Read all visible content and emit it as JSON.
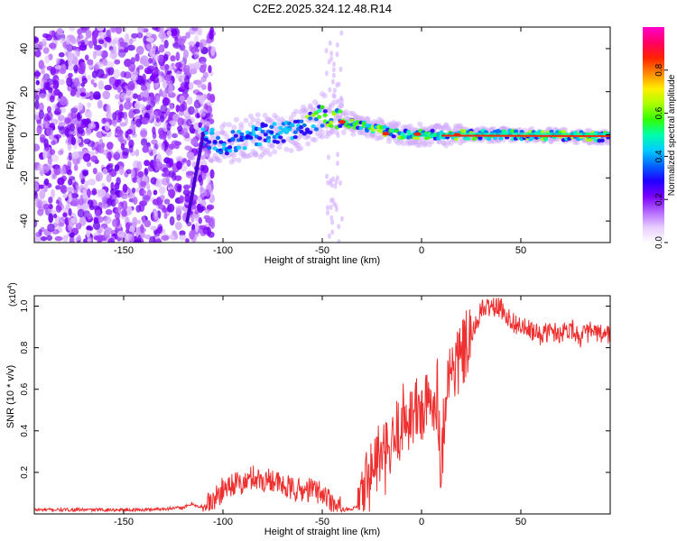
{
  "title": "C2E2.2025.324.12.48.R14",
  "chart_data": [
    {
      "type": "heatmap",
      "name": "spectrogram",
      "xlabel": "Height of straight line (km)",
      "ylabel": "Frequency (Hz)",
      "xlim": [
        -195,
        95
      ],
      "ylim": [
        -50,
        50
      ],
      "xticks": [
        -150,
        -100,
        -50,
        0,
        50
      ],
      "yticks": [
        -40,
        -20,
        0,
        20,
        40
      ],
      "colorbar": {
        "label": "Normalized spectral amplitude",
        "range": [
          0.0,
          1.0
        ],
        "ticks": [
          0.0,
          0.2,
          0.4,
          0.6,
          0.8
        ],
        "colors": [
          "#ffffff",
          "#e6ccff",
          "#b366ff",
          "#7a00ff",
          "#2000ff",
          "#0066ff",
          "#00ccff",
          "#00ffaa",
          "#33ff00",
          "#aaff00",
          "#ffee00",
          "#ff8800",
          "#ff2200",
          "#ff0066",
          "#ff00cc"
        ]
      },
      "ridge": [
        {
          "x": -110,
          "y": 0
        },
        {
          "x": -100,
          "y": -4
        },
        {
          "x": -90,
          "y": -2
        },
        {
          "x": -80,
          "y": 0
        },
        {
          "x": -70,
          "y": 2
        },
        {
          "x": -60,
          "y": 3
        },
        {
          "x": -50,
          "y": 9
        },
        {
          "x": -40,
          "y": 6
        },
        {
          "x": -30,
          "y": 4
        },
        {
          "x": -20,
          "y": 2
        },
        {
          "x": -10,
          "y": 0
        },
        {
          "x": 0,
          "y": 0
        },
        {
          "x": 20,
          "y": 0
        },
        {
          "x": 50,
          "y": 0
        },
        {
          "x": 95,
          "y": -1
        }
      ]
    },
    {
      "type": "line",
      "name": "snr",
      "xlabel": "Height of straight line (km)",
      "ylabel": "SNR (10 * v/v)",
      "scale_label": "(x10",
      "scale_exp": "4",
      "scale_tail": ")",
      "xlim": [
        -195,
        95
      ],
      "ylim": [
        0,
        1.05
      ],
      "xticks": [
        -150,
        -100,
        -50,
        0,
        50
      ],
      "yticks": [
        0.2,
        0.4,
        0.6,
        0.8,
        1.0
      ],
      "ytick_labels": [
        "0.2",
        "0.4",
        "0.6",
        "0.8",
        "1.0"
      ],
      "series": [
        {
          "name": "SNR",
          "color": "#ee3030",
          "x": [
            -195,
            -180,
            -160,
            -140,
            -120,
            -115,
            -112,
            -105,
            -100,
            -95,
            -90,
            -85,
            -80,
            -75,
            -70,
            -65,
            -60,
            -55,
            -50,
            -45,
            -42,
            -38,
            -35,
            -30,
            -28,
            -25,
            -22,
            -20,
            -15,
            -12,
            -10,
            -5,
            0,
            5,
            8,
            10,
            12,
            15,
            20,
            25,
            30,
            35,
            40,
            45,
            50,
            55,
            60,
            65,
            70,
            75,
            80,
            85,
            90,
            95
          ],
          "y": [
            0.02,
            0.02,
            0.02,
            0.02,
            0.03,
            0.05,
            0.03,
            0.06,
            0.12,
            0.15,
            0.14,
            0.18,
            0.16,
            0.17,
            0.13,
            0.12,
            0.11,
            0.12,
            0.1,
            0.06,
            0.03,
            0.02,
            0.02,
            0.05,
            0.15,
            0.2,
            0.28,
            0.25,
            0.3,
            0.4,
            0.45,
            0.48,
            0.5,
            0.52,
            0.6,
            0.2,
            0.6,
            0.7,
            0.75,
            0.85,
            0.98,
            1.0,
            0.99,
            0.93,
            0.9,
            0.88,
            0.86,
            0.88,
            0.87,
            0.9,
            0.85,
            0.88,
            0.86,
            0.87
          ]
        }
      ]
    }
  ]
}
